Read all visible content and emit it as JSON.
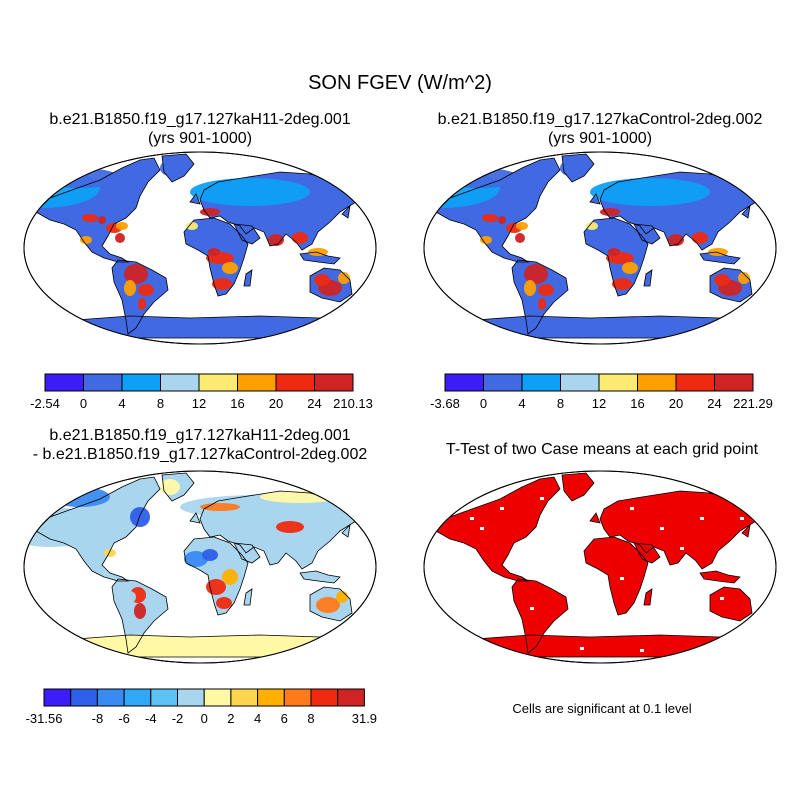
{
  "figure": {
    "title": "SON FGEV (W/m^2)"
  },
  "panels": [
    {
      "id": "case1",
      "title_line1": "b.e21.B1850.f19_g17.127kaH11-2deg.001",
      "title_line2": "(yrs 901-1000)",
      "colorbar": {
        "colors": [
          "#3c1cf7",
          "#4169e1",
          "#0ea0f7",
          "#a9d6ee",
          "#fcea72",
          "#ffa000",
          "#ef2a10",
          "#cf2424"
        ],
        "labels": [
          "-2.54",
          "0",
          "4",
          "8",
          "12",
          "16",
          "20",
          "24",
          "210.13"
        ]
      }
    },
    {
      "id": "case2",
      "title_line1": "b.e21.B1850.f19_g17.127kaControl-2deg.002",
      "title_line2": "(yrs 901-1000)",
      "colorbar": {
        "colors": [
          "#3c1cf7",
          "#4169e1",
          "#0ea0f7",
          "#a9d6ee",
          "#fcea72",
          "#ffa000",
          "#ef2a10",
          "#cf2424"
        ],
        "labels": [
          "-3.68",
          "0",
          "4",
          "8",
          "12",
          "16",
          "20",
          "24",
          "221.29"
        ]
      }
    },
    {
      "id": "difference",
      "title_line1": "b.e21.B1850.f19_g17.127kaH11-2deg.001",
      "title_line2": "- b.e21.B1850.f19_g17.127kaControl-2deg.002",
      "colorbar": {
        "colors": [
          "#3c1cf7",
          "#2d5fe8",
          "#3a8af2",
          "#31a8f5",
          "#5cc3f3",
          "#a9d6ee",
          "#fff9a6",
          "#ffd44f",
          "#ffb000",
          "#ff7a1a",
          "#ef2a10",
          "#cf2424"
        ],
        "labels": [
          "-31.56",
          "",
          "-8",
          "-6",
          "-4",
          "-2",
          "0",
          "2",
          "4",
          "6",
          "8",
          "",
          "31.9"
        ]
      }
    },
    {
      "id": "ttest",
      "title_line1": "T-Test of two Case means at each grid point",
      "note": "Cells are significant at 0.1 level"
    }
  ],
  "colors": {
    "significant": "#ee0000",
    "outline": "#000000",
    "ocean": "#ffffff"
  }
}
